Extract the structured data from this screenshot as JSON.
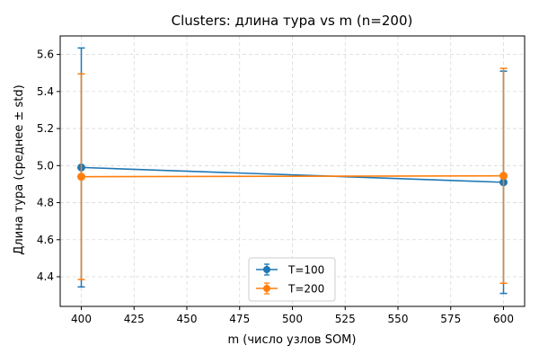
{
  "chart_data": {
    "type": "line",
    "title": "Clusters: длина тура vs m (n=200)",
    "xlabel": "m (число узлов SOM)",
    "ylabel": "Длина тура (среднее ± std)",
    "xlim": [
      390,
      610
    ],
    "ylim": [
      4.24,
      5.7
    ],
    "x_ticks": [
      400,
      425,
      450,
      475,
      500,
      525,
      550,
      575,
      600
    ],
    "y_ticks": [
      4.4,
      4.6,
      4.8,
      5.0,
      5.2,
      5.4,
      5.6
    ],
    "grid": true,
    "legend_position": "lower-center",
    "error_bars": true,
    "series": [
      {
        "name": "T=100",
        "color": "#1f77b4",
        "x": [
          400,
          600
        ],
        "y": [
          4.99,
          4.91
        ],
        "std": [
          0.645,
          0.6
        ]
      },
      {
        "name": "T=200",
        "color": "#ff7f0e",
        "x": [
          400,
          600
        ],
        "y": [
          4.94,
          4.945
        ],
        "std": [
          0.555,
          0.58
        ]
      }
    ]
  }
}
